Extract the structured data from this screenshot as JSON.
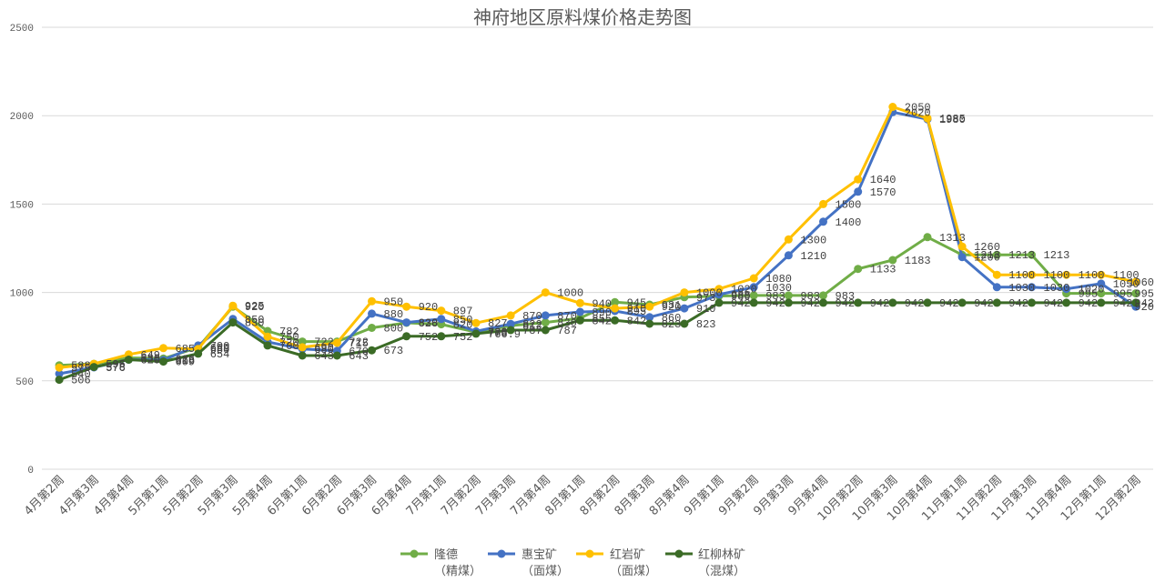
{
  "chart_data": {
    "type": "line",
    "title": "神府地区原料煤价格走势图",
    "ylim": [
      0,
      2500
    ],
    "yticks": [
      0,
      500,
      1000,
      1500,
      2000,
      2500
    ],
    "grid": true,
    "legend_position": "bottom",
    "categories": [
      "4月第2周",
      "4月第3周",
      "4月第4周",
      "5月第1周",
      "5月第2周",
      "5月第3周",
      "5月第4周",
      "6月第1周",
      "6月第2周",
      "6月第3周",
      "6月第4周",
      "7月第1周",
      "7月第2周",
      "7月第3周",
      "7月第4周",
      "8月第1周",
      "8月第2周",
      "8月第3周",
      "8月第4周",
      "9月第1周",
      "9月第2周",
      "9月第3周",
      "9月第4周",
      "10月第2周",
      "10月第3周",
      "10月第4周",
      "11月第1周",
      "11月第2周",
      "11月第3周",
      "11月第4周",
      "12月第1周",
      "12月第2周"
    ],
    "series": [
      {
        "name": "隆德",
        "grade": "（精煤）",
        "color": "#70ad47",
        "values": [
          588,
          596,
          630,
          626,
          689,
          920,
          782,
          722,
          722,
          800,
          828,
          820,
          775,
          812,
          830,
          855,
          945,
          931,
          973,
          980,
          983,
          983,
          983,
          1133,
          1183,
          1313,
          1213,
          1213,
          1213,
          995,
          995,
          995
        ]
      },
      {
        "name": "惠宝矿",
        "grade": "（面煤）",
        "color": "#4472c4",
        "values": [
          540,
          576,
          620,
          618,
          700,
          850,
          720,
          680,
          670,
          880,
          830,
          850,
          780,
          822,
          870,
          890,
          895,
          860,
          910,
          988,
          1030,
          1210,
          1400,
          1570,
          2020,
          1980,
          1200,
          1030,
          1030,
          1020,
          1050,
          920
        ]
      },
      {
        "name": "红岩矿",
        "grade": "（面煤）",
        "color": "#ffc000",
        "values": [
          575,
          596,
          649,
          685,
          680,
          925,
          750,
          690,
          715,
          950,
          920,
          897,
          827,
          870,
          1000,
          940,
          910,
          920,
          1000,
          1020,
          1080,
          1300,
          1500,
          1640,
          2050,
          1985,
          1260,
          1100,
          1100,
          1100,
          1100,
          1060
        ]
      },
      {
        "name": "红柳林矿",
        "grade": "（混煤）",
        "color": "#3b6b26",
        "values": [
          506,
          578,
          620,
          609,
          654,
          830,
          700,
          643,
          643,
          673,
          752,
          752,
          766.9,
          787,
          787,
          842,
          842,
          823,
          823,
          942,
          942,
          942,
          942,
          942,
          942,
          942,
          942,
          942,
          942,
          942,
          942,
          942
        ]
      }
    ]
  }
}
